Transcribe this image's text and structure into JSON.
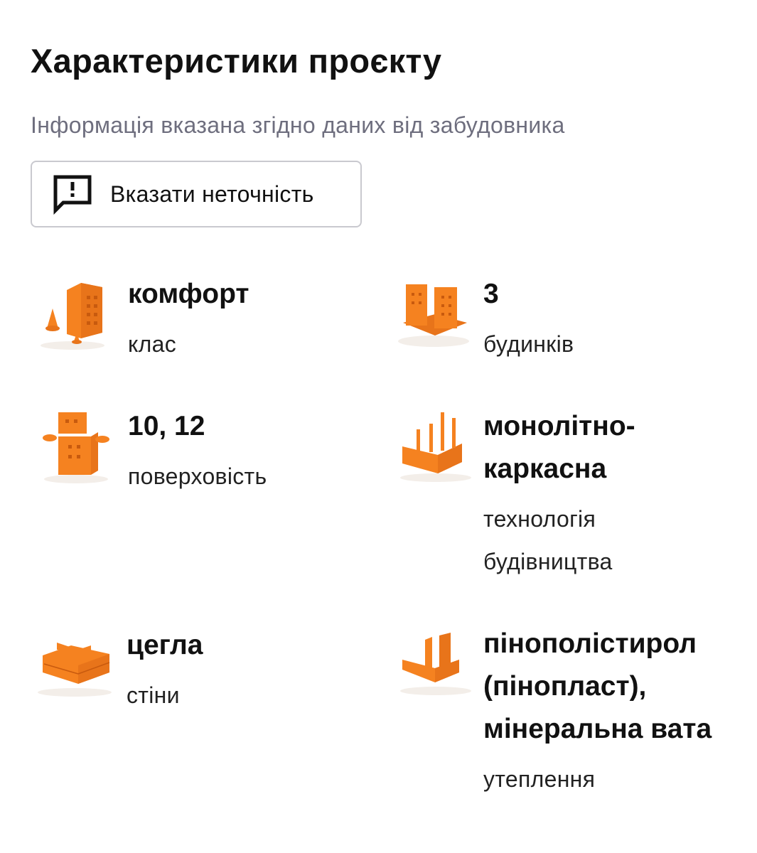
{
  "header": {
    "title": "Характеристики проєкту",
    "subtitle": "Інформація вказана згідно даних від забудовника"
  },
  "report_button": {
    "label": "Вказати неточність",
    "icon": "report-message-icon"
  },
  "accent_color": "#f58220",
  "features": [
    {
      "value": "комфорт",
      "label": "клас",
      "icon": "building-class-icon"
    },
    {
      "value": "3",
      "label": "будинків",
      "icon": "buildings-count-icon"
    },
    {
      "value": "10, 12",
      "label": "поверховість",
      "icon": "floors-icon"
    },
    {
      "value": "монолітно-каркасна",
      "label": "технологія будівництва",
      "icon": "construction-technology-icon"
    },
    {
      "value": "цегла",
      "label": "стіни",
      "icon": "brick-walls-icon"
    },
    {
      "value": "пінополістирол (пінопласт), мінеральна вата",
      "label": "утеплення",
      "icon": "insulation-icon"
    }
  ]
}
